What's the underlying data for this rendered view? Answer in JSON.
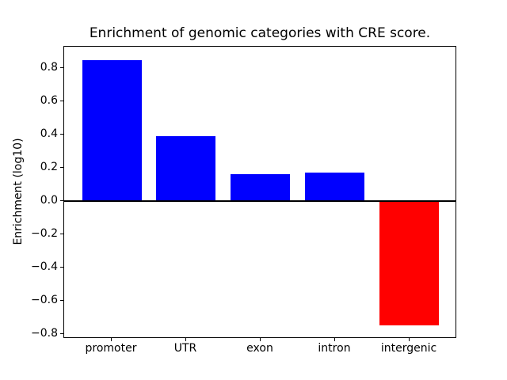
{
  "figure": {
    "background": "#ffffff",
    "axes_border_color": "#000000"
  },
  "chart_data": {
    "type": "bar",
    "title": "Enrichment of genomic categories with CRE score.",
    "xlabel": "",
    "ylabel": "Enrichment (log10)",
    "categories": [
      "promoter",
      "UTR",
      "exon",
      "intron",
      "intergenic"
    ],
    "values": [
      0.85,
      0.39,
      0.16,
      0.17,
      -0.75
    ],
    "bar_colors": [
      "#0000ff",
      "#0000ff",
      "#0000ff",
      "#0000ff",
      "#ff0000"
    ],
    "positive_color": "#0000ff",
    "negative_color": "#ff0000",
    "bar_width": 0.8,
    "xlim": [
      -0.64,
      4.64
    ],
    "ylim": [
      -0.83,
      0.93
    ],
    "yticks": [
      -0.8,
      -0.6,
      -0.4,
      -0.2,
      0.0,
      0.2,
      0.4,
      0.6,
      0.8
    ],
    "grid": false,
    "legend": false,
    "zero_line": {
      "value": 0.0,
      "color": "#000000",
      "thickness_px": 2
    }
  }
}
